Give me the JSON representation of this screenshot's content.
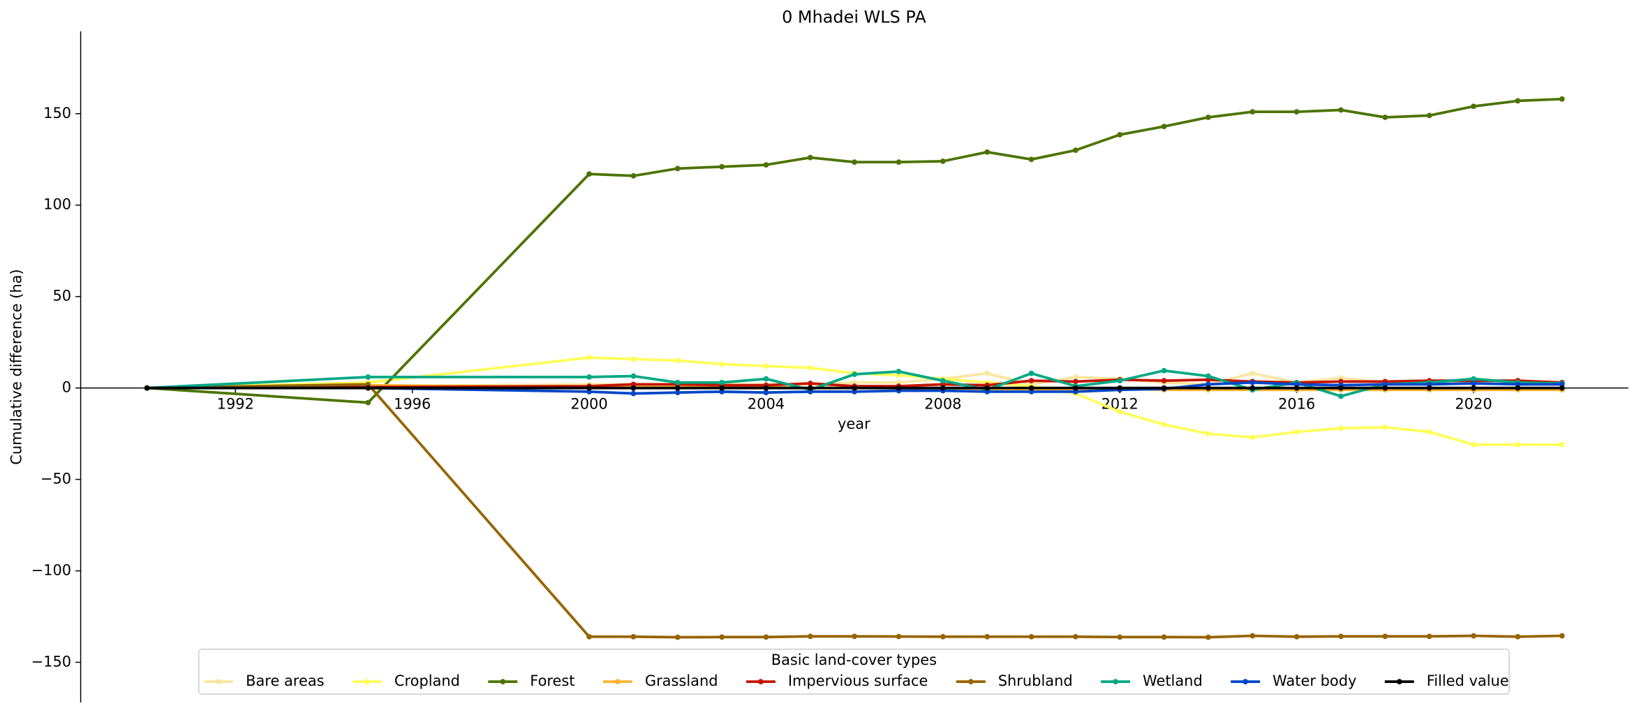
{
  "chart_data": {
    "type": "line",
    "title": "0 Mhadei WLS PA",
    "x_label": "year",
    "y_label": "Cumulative difference (ha)",
    "x": [
      1990,
      1995,
      2000,
      2001,
      2002,
      2003,
      2004,
      2005,
      2006,
      2007,
      2008,
      2009,
      2010,
      2011,
      2012,
      2013,
      2014,
      2015,
      2016,
      2017,
      2018,
      2019,
      2020,
      2021,
      2022
    ],
    "xlim": [
      1988.5,
      2023.5
    ],
    "xticks": [
      1992,
      1996,
      2000,
      2004,
      2008,
      2012,
      2016,
      2020
    ],
    "ylim": [
      -172,
      195
    ],
    "yticks": [
      -150,
      -100,
      -50,
      0,
      50,
      100,
      150
    ],
    "legend_title": "Basic land-cover types",
    "legend": "lower center",
    "grid": false,
    "series": [
      {
        "name": "Bare areas",
        "color": "#fae6a0",
        "values": [
          0,
          1,
          2,
          2,
          2,
          2,
          2,
          2,
          3,
          3,
          5,
          8,
          2,
          6,
          5,
          3,
          2,
          8,
          3,
          5.5,
          3,
          3,
          3,
          3,
          3
        ]
      },
      {
        "name": "Cropland",
        "color": "#ffff5a",
        "values": [
          0,
          3,
          16.6,
          15.8,
          15,
          13,
          12,
          11,
          8,
          7,
          5,
          3,
          1,
          -3,
          -13,
          -20,
          -25,
          -27,
          -24,
          -22,
          -21.5,
          -24,
          -31,
          -31,
          -31
        ]
      },
      {
        "name": "Forest",
        "color": "#4c7300",
        "values": [
          0,
          -8,
          117,
          116,
          120,
          121,
          122,
          126,
          123.5,
          123.5,
          124,
          129,
          125,
          130,
          138.5,
          143,
          148,
          151,
          151,
          152,
          148,
          149,
          154,
          157,
          158
        ]
      },
      {
        "name": "Grassland",
        "color": "#ffb432",
        "values": [
          0,
          1.5,
          0.5,
          0.5,
          0.5,
          0.5,
          0.5,
          0,
          0,
          0,
          0,
          -0.5,
          -0.5,
          -0.5,
          -0.5,
          -1,
          -1,
          -1,
          -1,
          -1,
          -1,
          -1,
          -1,
          -1,
          -1
        ]
      },
      {
        "name": "Impervious surface",
        "color": "#c31400",
        "values": [
          0,
          0.5,
          1,
          2,
          2,
          1.5,
          1.5,
          2.5,
          1,
          1,
          2,
          1.5,
          4,
          3.5,
          4.5,
          4,
          4.5,
          3.5,
          3,
          3.5,
          3.5,
          4,
          4,
          4,
          3
        ]
      },
      {
        "name": "Shrubland",
        "color": "#966400",
        "values": [
          0,
          2,
          -136,
          -136,
          -136.3,
          -136.2,
          -136.2,
          -135.8,
          -135.8,
          -135.9,
          -136,
          -136,
          -136,
          -136,
          -136.2,
          -136.2,
          -136.3,
          -135.5,
          -136,
          -135.8,
          -135.8,
          -135.8,
          -135.5,
          -136,
          -135.5
        ]
      },
      {
        "name": "Wetland",
        "color": "#00a884",
        "values": [
          0,
          6,
          6,
          6.5,
          3,
          3,
          5,
          -1,
          7.5,
          9,
          4,
          -1,
          8,
          1,
          4,
          9.5,
          6.5,
          -1,
          3,
          -4.5,
          2,
          3,
          5,
          3,
          2.5
        ]
      },
      {
        "name": "Water body",
        "color": "#0046c8",
        "values": [
          0,
          0,
          -2,
          -3,
          -2.5,
          -2,
          -2.5,
          -2,
          -2,
          -1.5,
          -1.5,
          -2,
          -2,
          -2,
          -1,
          -0.5,
          2,
          3,
          2,
          1.5,
          2,
          2,
          2.5,
          2,
          2
        ]
      },
      {
        "name": "Filled value",
        "color": "#000000",
        "values": [
          0,
          0,
          0,
          0,
          0,
          0,
          0,
          0,
          0,
          0,
          0,
          0,
          0,
          0,
          0,
          0,
          0,
          0,
          0,
          0,
          0,
          0,
          0,
          0,
          0
        ]
      }
    ]
  }
}
